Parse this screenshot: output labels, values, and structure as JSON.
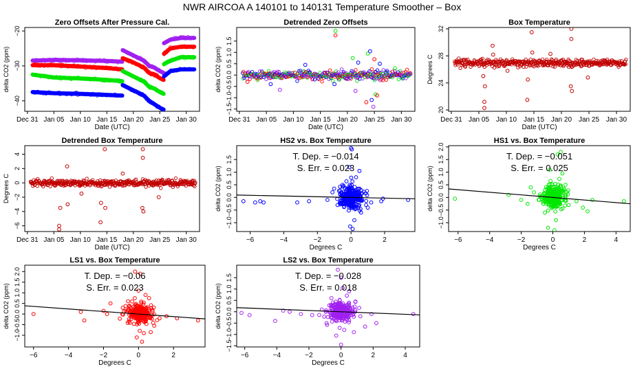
{
  "title": "NWR   AIRCOA A   140101 to 140131   Temperature Smoother – Box",
  "colors": {
    "HS2": "#0000ff",
    "HS1": "#00e600",
    "LS1": "#ff0000",
    "LS2": "#a020f0",
    "box": "#c00000",
    "fit": "#000000"
  },
  "chart_data": [
    {
      "type": "line",
      "title": "Zero Offsets After Pressure Cal.",
      "xlabel": "Date (UTC)",
      "ylabel": "delta CO2 (ppm)",
      "xticks": [
        "Dec 31",
        "Jan 05",
        "Jan 10",
        "Jan 15",
        "Jan 20",
        "Jan 25",
        "Jan 30"
      ],
      "xtick_days": [
        0,
        5,
        10,
        15,
        20,
        25,
        30
      ],
      "xlim": [
        -0.5,
        32.5
      ],
      "ylim": [
        -43,
        -19
      ],
      "yticks": [
        -40,
        -30,
        -20
      ],
      "series": [
        {
          "name": "LS2",
          "x": [
            1,
            5,
            10,
            15,
            17.9,
            18,
            20,
            22,
            23,
            24,
            25,
            25.7,
            25.8,
            27,
            29,
            31.5
          ],
          "values": [
            -28.5,
            -28.3,
            -28.4,
            -28.6,
            -28.8,
            -25.5,
            -27,
            -28.5,
            -30,
            -30.5,
            -31.5,
            -32,
            -23.5,
            -22.5,
            -22,
            -22
          ]
        },
        {
          "name": "LS1",
          "x": [
            1,
            5,
            10,
            15,
            17.9,
            18,
            20,
            22,
            23,
            24,
            25,
            25.7,
            25.8,
            27,
            29,
            31.5
          ],
          "values": [
            -29.8,
            -29.8,
            -30.2,
            -30.6,
            -31,
            -27.8,
            -29,
            -30.5,
            -32,
            -32.5,
            -33.5,
            -34,
            -26.5,
            -25,
            -24.5,
            -24.5
          ]
        },
        {
          "name": "HS1",
          "x": [
            1,
            5,
            10,
            15,
            17.9,
            18,
            20,
            22,
            23,
            24,
            25,
            25.7,
            25.8,
            27,
            29,
            31.5
          ],
          "values": [
            -32.5,
            -33.3,
            -33.6,
            -34,
            -34.4,
            -31.5,
            -33,
            -34.5,
            -36,
            -36.5,
            -37.5,
            -38,
            -29.5,
            -28.5,
            -27.5,
            -27.5
          ]
        },
        {
          "name": "HS2",
          "x": [
            1,
            5,
            10,
            15,
            17.9,
            18,
            20,
            22,
            23,
            24,
            25,
            25.7,
            25.8,
            27,
            29,
            31.5
          ],
          "values": [
            -37.5,
            -37.8,
            -38,
            -38.3,
            -38.5,
            -35.5,
            -37,
            -38.5,
            -40,
            -41,
            -42,
            -42.5,
            -33,
            -31.5,
            -31,
            -31
          ]
        }
      ]
    },
    {
      "type": "scatter",
      "title": "Detrended Zero Offsets",
      "xlabel": "Date (UTC)",
      "ylabel": "delta CO2 (ppm)",
      "xticks": [
        "Dec 31",
        "Jan 05",
        "Jan 10",
        "Jan 15",
        "Jan 20",
        "Jan 25",
        "Jan 30"
      ],
      "xtick_days": [
        0,
        5,
        10,
        15,
        20,
        25,
        30
      ],
      "xlim": [
        -0.5,
        32.5
      ],
      "ylim": [
        -1.6,
        2.1
      ],
      "yticks": [
        -1.5,
        -1,
        -0.5,
        0,
        0.5,
        1,
        1.5
      ],
      "ytick_labels": [
        "−1.5",
        "−1.0",
        "−0.5",
        "0.0",
        "0.5",
        "1.0",
        "1.5"
      ],
      "series_names": [
        "HS2",
        "HS1",
        "LS1",
        "LS2"
      ],
      "band": [
        -0.12,
        0.12
      ],
      "outliers": [
        {
          "day": 17.8,
          "value": 1.95,
          "series": "HS1"
        },
        {
          "day": 17.8,
          "value": 1.75,
          "series": "LS1"
        },
        {
          "day": 7.5,
          "value": -0.65,
          "series": "LS2"
        },
        {
          "day": 5.8,
          "value": -0.4,
          "series": "HS2"
        },
        {
          "day": 1.5,
          "value": -0.3,
          "series": "LS1"
        },
        {
          "day": 12.2,
          "value": 0.45,
          "series": "HS2"
        },
        {
          "day": 17.6,
          "value": -0.4,
          "series": "HS2"
        },
        {
          "day": 21,
          "value": 0.75,
          "series": "HS1"
        },
        {
          "day": 21.5,
          "value": -0.7,
          "series": "LS2"
        },
        {
          "day": 22,
          "value": 0.55,
          "series": "HS2"
        },
        {
          "day": 23.5,
          "value": -1.2,
          "series": "LS1"
        },
        {
          "day": 23.8,
          "value": 0.95,
          "series": "HS1"
        },
        {
          "day": 24.2,
          "value": 1.05,
          "series": "HS2"
        },
        {
          "day": 24.5,
          "value": -1.1,
          "series": "HS2"
        },
        {
          "day": 24.8,
          "value": -1.4,
          "series": "LS2"
        },
        {
          "day": 25,
          "value": 0.7,
          "series": "LS1"
        },
        {
          "day": 25.2,
          "value": -0.85,
          "series": "HS1"
        },
        {
          "day": 25.5,
          "value": -0.9,
          "series": "LS1"
        },
        {
          "day": 26,
          "value": 0.5,
          "series": "HS2"
        },
        {
          "day": 28.8,
          "value": 0.3,
          "series": "HS1"
        }
      ]
    },
    {
      "type": "scatter",
      "title": "Box Temperature",
      "xlabel": "Date (UTC)",
      "ylabel": "Degrees C",
      "xticks": [
        "Dec 31",
        "Jan 05",
        "Jan 10",
        "Jan 15",
        "Jan 20",
        "Jan 25",
        "Jan 30"
      ],
      "xtick_days": [
        0,
        5,
        10,
        15,
        20,
        25,
        30
      ],
      "xlim": [
        -0.5,
        32.5
      ],
      "ylim": [
        19.8,
        32.2
      ],
      "yticks": [
        20,
        24,
        28,
        32
      ],
      "ytick_labels": [
        "20",
        "24",
        "28",
        "32"
      ],
      "series_names": [
        "box"
      ],
      "band": [
        26.6,
        27.3
      ],
      "outliers": [
        {
          "day": 6,
          "value": 20.3,
          "series": "box"
        },
        {
          "day": 6,
          "value": 21.2,
          "series": "box"
        },
        {
          "day": 6.1,
          "value": 23.5,
          "series": "box"
        },
        {
          "day": 5.8,
          "value": 25,
          "series": "box"
        },
        {
          "day": 7.5,
          "value": 29.5,
          "series": "box"
        },
        {
          "day": 7.6,
          "value": 28.2,
          "series": "box"
        },
        {
          "day": 13.8,
          "value": 21.5,
          "series": "box"
        },
        {
          "day": 13.9,
          "value": 24.5,
          "series": "box"
        },
        {
          "day": 14.6,
          "value": 31.5,
          "series": "box"
        },
        {
          "day": 14.7,
          "value": 28.5,
          "series": "box"
        },
        {
          "day": 21.8,
          "value": 32,
          "series": "box"
        },
        {
          "day": 21.8,
          "value": 30.5,
          "series": "box"
        },
        {
          "day": 21.7,
          "value": 23.5,
          "series": "box"
        },
        {
          "day": 21.9,
          "value": 22.8,
          "series": "box"
        },
        {
          "day": 24.8,
          "value": 24.8,
          "series": "box"
        },
        {
          "day": 10.2,
          "value": 25.8,
          "series": "box"
        },
        {
          "day": 18,
          "value": 28.3,
          "series": "box"
        }
      ]
    },
    {
      "type": "scatter",
      "title": "Detrended Box Temperature",
      "xlabel": "Date (UTC)",
      "ylabel": "Degrees C",
      "xticks": [
        "Dec 31",
        "Jan 05",
        "Jan 10",
        "Jan 15",
        "Jan 20",
        "Jan 25",
        "Jan 30"
      ],
      "xtick_days": [
        0,
        5,
        10,
        15,
        20,
        25,
        30
      ],
      "xlim": [
        -0.5,
        32.5
      ],
      "ylim": [
        -6.8,
        5.2
      ],
      "yticks": [
        -6,
        -4,
        -2,
        0,
        2,
        4
      ],
      "ytick_labels": [
        "−6",
        "−4",
        "−2",
        "0",
        "2",
        "4"
      ],
      "series_names": [
        "box"
      ],
      "band": [
        -0.3,
        0.3
      ],
      "outliers": [
        {
          "day": 6,
          "value": -6.5,
          "series": "box"
        },
        {
          "day": 6,
          "value": -6,
          "series": "box"
        },
        {
          "day": 6.2,
          "value": -3.5,
          "series": "box"
        },
        {
          "day": 7.5,
          "value": 2.3,
          "series": "box"
        },
        {
          "day": 7.6,
          "value": -3,
          "series": "box"
        },
        {
          "day": 13.8,
          "value": -5.5,
          "series": "box"
        },
        {
          "day": 13.9,
          "value": -2.8,
          "series": "box"
        },
        {
          "day": 14.6,
          "value": 4.7,
          "series": "box"
        },
        {
          "day": 14.7,
          "value": -3.5,
          "series": "box"
        },
        {
          "day": 21.8,
          "value": 4.7,
          "series": "box"
        },
        {
          "day": 21.8,
          "value": 3.5,
          "series": "box"
        },
        {
          "day": 21.7,
          "value": -3.5,
          "series": "box"
        },
        {
          "day": 21.9,
          "value": -4,
          "series": "box"
        },
        {
          "day": 24.8,
          "value": -2,
          "series": "box"
        },
        {
          "day": 10.2,
          "value": -1.5,
          "series": "box"
        },
        {
          "day": 18,
          "value": 1.3,
          "series": "box"
        }
      ]
    },
    {
      "type": "scatter",
      "title": "HS2 vs. Box Temperature",
      "series_name": "HS2",
      "xlabel": "Degrees C",
      "ylabel": "delta CO2 (ppm)",
      "xlim": [
        -6.8,
        3.8
      ],
      "xticks": [
        -6,
        -4,
        -2,
        0,
        2
      ],
      "xtick_labels": [
        "−6",
        "−4",
        "−2",
        "0",
        "2"
      ],
      "ylim": [
        -1.35,
        2.05
      ],
      "yticks": [
        -1,
        -0.5,
        0,
        0.5,
        1,
        1.5
      ],
      "ytick_labels": [
        "−1.0",
        "−0.5",
        "0.0",
        "0.5",
        "1.0",
        "1.5"
      ],
      "slope": -0.014,
      "intercept": 0,
      "annotation_tdep": "T. Dep. =  −0.014",
      "annotation_serr": "S. Err. =  0.023",
      "points": [
        [
          -6.4,
          -0.15
        ],
        [
          -5.7,
          -0.2
        ],
        [
          -5.4,
          -0.15
        ],
        [
          -5.2,
          -0.2
        ],
        [
          -3.2,
          -0.2
        ],
        [
          -2.5,
          -0.15
        ],
        [
          -1.4,
          -0.1
        ],
        [
          -1,
          0.35
        ],
        [
          -0.8,
          -0.3
        ],
        [
          0,
          1.95
        ],
        [
          0.05,
          1.9
        ],
        [
          -0.1,
          1.2
        ],
        [
          0.1,
          -1.25
        ],
        [
          -0.05,
          -1.15
        ],
        [
          0.2,
          -0.9
        ],
        [
          0.5,
          1.05
        ],
        [
          0.3,
          0.8
        ],
        [
          1.2,
          -0.2
        ],
        [
          1.8,
          -0.15
        ],
        [
          1.9,
          -0.05
        ],
        [
          3.4,
          -0.1
        ],
        [
          0.9,
          -0.3
        ],
        [
          -0.5,
          0.5
        ],
        [
          0.6,
          -0.6
        ]
      ]
    },
    {
      "type": "scatter",
      "title": "HS1 vs. Box Temperature",
      "series_name": "HS1",
      "xlabel": "Degrees C",
      "ylabel": "delta CO2 (ppm)",
      "xlim": [
        -6.6,
        4.9
      ],
      "xticks": [
        -6,
        -4,
        -2,
        0,
        2,
        4
      ],
      "xtick_labels": [
        "−6",
        "−4",
        "−2",
        "0",
        "2",
        "4"
      ],
      "ylim": [
        -1.35,
        2.05
      ],
      "yticks": [
        -1,
        -0.5,
        0,
        0.5,
        1,
        1.5,
        2
      ],
      "ytick_labels": [
        "−1.0",
        "−0.5",
        "0.0",
        "0.5",
        "1.0",
        "1.5",
        "2.0"
      ],
      "slope": -0.051,
      "intercept": 0,
      "annotation_tdep": "T. Dep. =  −0.051",
      "annotation_serr": "S. Err. =  0.025",
      "points": [
        [
          -6.2,
          -0.05
        ],
        [
          -2.8,
          0.1
        ],
        [
          -2,
          -0.1
        ],
        [
          -1.6,
          -0.25
        ],
        [
          -1.4,
          0.4
        ],
        [
          -1.2,
          0.2
        ],
        [
          -0.9,
          -0.1
        ],
        [
          0.5,
          1.8
        ],
        [
          0.3,
          1.7
        ],
        [
          -0.2,
          1.1
        ],
        [
          0.1,
          -1.3
        ],
        [
          -0.3,
          -1.2
        ],
        [
          0.2,
          -0.9
        ],
        [
          0.6,
          0.95
        ],
        [
          1,
          -0.3
        ],
        [
          1.5,
          -0.15
        ],
        [
          1.9,
          -0.4
        ],
        [
          2.2,
          -0.55
        ],
        [
          4.5,
          -0.15
        ],
        [
          0.8,
          0.5
        ],
        [
          -0.5,
          -0.6
        ],
        [
          2.5,
          -0.1
        ]
      ]
    },
    {
      "type": "scatter",
      "title": "LS1 vs. Box Temperature",
      "series_name": "LS1",
      "xlabel": "Degrees C",
      "ylabel": "delta CO2 (ppm)",
      "xlim": [
        -6.5,
        3.8
      ],
      "xticks": [
        -6,
        -4,
        -2,
        0,
        2
      ],
      "xtick_labels": [
        "−6",
        "−4",
        "−2",
        "0",
        "2"
      ],
      "ylim": [
        -1.55,
        2.3
      ],
      "yticks": [
        -1,
        -0.5,
        0,
        0.5,
        1,
        1.5,
        2
      ],
      "ytick_labels": [
        "−1.0",
        "−0.5",
        "0.0",
        "0.5",
        "1.0",
        "1.5",
        "2.0"
      ],
      "slope": -0.06,
      "intercept": 0,
      "annotation_tdep": "T. Dep. =  −0.06",
      "annotation_serr": "S. Err. =  0.023",
      "points": [
        [
          -6,
          0
        ],
        [
          -3.3,
          0.1
        ],
        [
          -3.1,
          -0.3
        ],
        [
          -2,
          0.15
        ],
        [
          -1.8,
          0
        ],
        [
          -1.6,
          0.5
        ],
        [
          -0.9,
          0.3
        ],
        [
          -0.2,
          2
        ],
        [
          0.1,
          1.9
        ],
        [
          0,
          1.1
        ],
        [
          0.2,
          -1.3
        ],
        [
          -0.1,
          -1.1
        ],
        [
          0.3,
          -0.9
        ],
        [
          0.6,
          0.75
        ],
        [
          0.4,
          0.9
        ],
        [
          1.2,
          -0.2
        ],
        [
          1.6,
          -0.1
        ],
        [
          2.2,
          -0.2
        ],
        [
          3.4,
          -0.3
        ],
        [
          0.9,
          -0.55
        ],
        [
          -0.6,
          0.6
        ],
        [
          0.7,
          -0.85
        ]
      ]
    },
    {
      "type": "scatter",
      "title": "LS2 vs. Box Temperature",
      "series_name": "LS2",
      "xlabel": "Degrees C",
      "ylabel": "delta CO2 (ppm)",
      "xlim": [
        -6.5,
        4.9
      ],
      "xticks": [
        -6,
        -4,
        -2,
        0,
        2,
        4
      ],
      "xtick_labels": [
        "−6",
        "−4",
        "−2",
        "0",
        "2",
        "4"
      ],
      "ylim": [
        -1.55,
        2.05
      ],
      "yticks": [
        -1.5,
        -1,
        -0.5,
        0,
        0.5,
        1,
        1.5
      ],
      "ytick_labels": [
        "−1.5",
        "−1.0",
        "−0.5",
        "0.0",
        "0.5",
        "1.0",
        "1.5"
      ],
      "slope": -0.028,
      "intercept": 0,
      "annotation_tdep": "T. Dep. =  −0.028",
      "annotation_serr": "S. Err. =  0.018",
      "points": [
        [
          -6.2,
          -0.05
        ],
        [
          -5.7,
          -0.15
        ],
        [
          -4.1,
          -0.4
        ],
        [
          -3.6,
          0.05
        ],
        [
          -3.2,
          0
        ],
        [
          -2.5,
          -0.1
        ],
        [
          -1.8,
          -0.15
        ],
        [
          -1.2,
          0.1
        ],
        [
          -0.9,
          -0.5
        ],
        [
          -0.2,
          1.85
        ],
        [
          0,
          1.5
        ],
        [
          0.1,
          1.05
        ],
        [
          0,
          -1.45
        ],
        [
          -0.3,
          -1.05
        ],
        [
          0.2,
          -0.8
        ],
        [
          0.5,
          0.9
        ],
        [
          1.2,
          -0.2
        ],
        [
          1.5,
          -0.65
        ],
        [
          1.9,
          -0.1
        ],
        [
          2.2,
          -0.5
        ],
        [
          4.5,
          -0.1
        ],
        [
          0.9,
          0.45
        ],
        [
          -0.6,
          0.6
        ],
        [
          0.8,
          -0.9
        ]
      ]
    }
  ]
}
